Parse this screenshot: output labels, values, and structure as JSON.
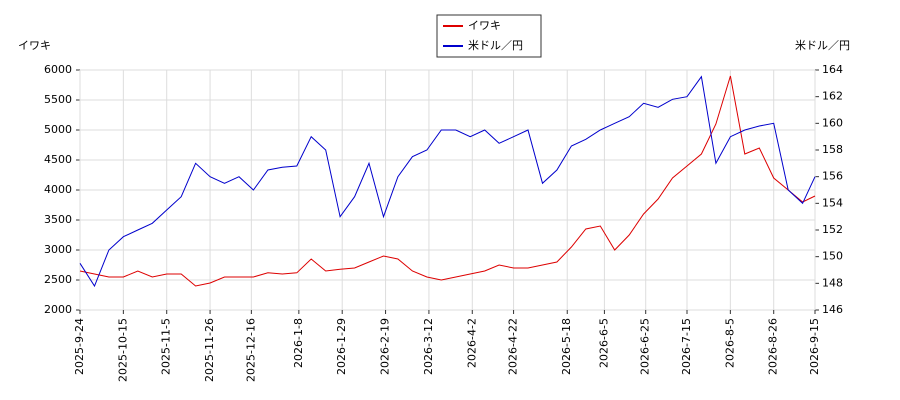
{
  "chart_data": {
    "type": "line",
    "ylabel": "イワキ",
    "y2label": "米ドル／円",
    "x": [
      "2025-09-24",
      "2025-10-01",
      "2025-10-08",
      "2025-10-15",
      "2025-10-22",
      "2025-10-29",
      "2025-11-05",
      "2025-11-12",
      "2025-11-19",
      "2025-11-26",
      "2025-12-03",
      "2025-12-10",
      "2025-12-17",
      "2025-12-24",
      "2025-12-31",
      "2026-01-07",
      "2026-01-14",
      "2026-01-21",
      "2026-01-28",
      "2026-02-04",
      "2026-02-11",
      "2026-02-18",
      "2026-02-25",
      "2026-03-04",
      "2026-03-11",
      "2026-03-18",
      "2026-03-25",
      "2026-04-01",
      "2026-04-08",
      "2026-04-15",
      "2026-04-22",
      "2026-04-29",
      "2026-05-06",
      "2026-05-13",
      "2026-05-20",
      "2026-05-27",
      "2026-06-03",
      "2026-06-10",
      "2026-06-17",
      "2026-06-24",
      "2026-07-01",
      "2026-07-08",
      "2026-07-15",
      "2026-07-22",
      "2026-07-29",
      "2026-08-05",
      "2026-08-12",
      "2026-08-19",
      "2026-08-26",
      "2026-09-02",
      "2026-09-09",
      "2026-09-15"
    ],
    "series": [
      {
        "name": "イワキ",
        "color": "#dd0000",
        "axis": "y",
        "values": [
          2650,
          2600,
          2550,
          2550,
          2650,
          2550,
          2600,
          2600,
          2400,
          2450,
          2550,
          2550,
          2550,
          2620,
          2600,
          2620,
          2850,
          2650,
          2680,
          2700,
          2800,
          2900,
          2850,
          2650,
          2550,
          2500,
          2550,
          2600,
          2650,
          2750,
          2700,
          2700,
          2750,
          2800,
          3050,
          3350,
          3400,
          3000,
          3250,
          3600,
          3850,
          4200,
          4400,
          4600,
          5100,
          5900,
          4600,
          4700,
          4200,
          4000,
          3800,
          3900
        ]
      },
      {
        "name": "米ドル／円",
        "color": "#0000cc",
        "axis": "y2",
        "values": [
          149.5,
          147.8,
          150.5,
          151.5,
          152,
          152.5,
          153.5,
          154.5,
          157,
          156,
          155.5,
          156,
          155,
          156.5,
          156.7,
          156.8,
          159,
          158,
          153,
          154.5,
          157,
          153,
          156,
          157.5,
          158,
          159.5,
          159.5,
          159,
          159.5,
          158.5,
          159,
          159.5,
          155.5,
          156.5,
          158.3,
          158.8,
          159.5,
          160,
          160.5,
          161.5,
          161.2,
          161.8,
          162,
          163.5,
          157,
          159,
          159.5,
          159.8,
          160,
          155,
          154,
          156
        ]
      }
    ],
    "xlim": [
      "2025-09-24",
      "2026-09-15"
    ],
    "xticks": [
      "2025-9-24",
      "2025-10-15",
      "2025-11-5",
      "2025-11-26",
      "2025-12-16",
      "2026-1-8",
      "2026-1-29",
      "2026-2-19",
      "2026-3-12",
      "2026-4-2",
      "2026-4-22",
      "2026-5-18",
      "2026-6-5",
      "2026-6-25",
      "2026-7-15",
      "2026-8-5",
      "2026-8-26",
      "2026-9-15"
    ],
    "ylim": [
      2000,
      6000
    ],
    "yticks": [
      2000,
      2500,
      3000,
      3500,
      4000,
      4500,
      5000,
      5500,
      6000
    ],
    "y2lim": [
      146,
      164
    ],
    "y2ticks": [
      146,
      148,
      150,
      152,
      154,
      156,
      158,
      160,
      162,
      164
    ],
    "grid": true
  }
}
